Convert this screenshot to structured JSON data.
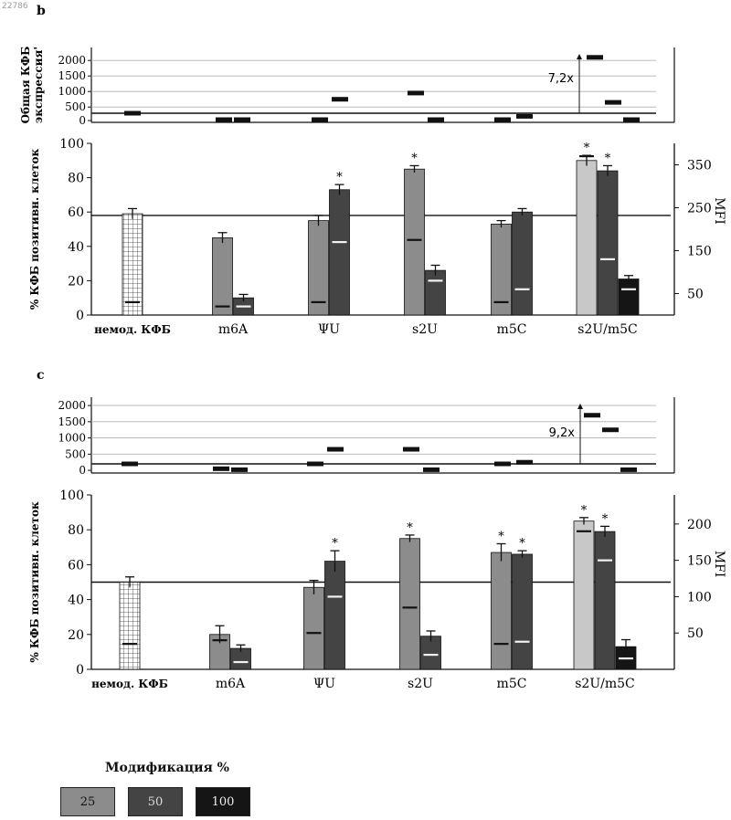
{
  "corner_id": "22786",
  "legend": {
    "title": "Модификация %",
    "entries": [
      {
        "label": "25",
        "color": "#8c8c8c",
        "text_color": "#111111"
      },
      {
        "label": "50",
        "color": "#444444",
        "text_color": "#dddddd"
      },
      {
        "label": "100",
        "color": "#151515",
        "text_color": "#eeeeee"
      }
    ]
  },
  "chart_data": [
    {
      "panel": "b",
      "type": "bar",
      "categories": [
        "немод. КФБ",
        "m6A",
        "ΨU",
        "s2U",
        "m5C",
        "s2U/m5C"
      ],
      "ylabel": "% КФБ позитивн. клеток",
      "ylim": [
        0,
        100
      ],
      "yticks": [
        0,
        20,
        40,
        60,
        80,
        100
      ],
      "y2label": "MFI",
      "y2ticks": [
        50,
        150,
        250,
        350
      ],
      "y2lim": [
        0,
        400
      ],
      "reference_line": 58,
      "series": [
        {
          "name": "25",
          "values": [
            null,
            45,
            55,
            85,
            53,
            90
          ],
          "errors": [
            null,
            3,
            3,
            2,
            2,
            3
          ],
          "mfi": [
            null,
            20,
            30,
            175,
            30,
            370
          ],
          "significant": [
            false,
            false,
            false,
            true,
            false,
            true
          ]
        },
        {
          "name": "50",
          "values": [
            null,
            10,
            73,
            26,
            60,
            84
          ],
          "errors": [
            null,
            2,
            3,
            3,
            2,
            3
          ],
          "mfi": [
            null,
            20,
            170,
            80,
            60,
            130
          ],
          "significant": [
            false,
            false,
            true,
            false,
            false,
            true
          ]
        },
        {
          "name": "100",
          "values": [
            null,
            null,
            null,
            null,
            null,
            21
          ],
          "errors": [
            null,
            null,
            null,
            null,
            null,
            2
          ],
          "mfi": [
            null,
            null,
            null,
            null,
            null,
            60
          ],
          "significant": [
            false,
            false,
            false,
            false,
            false,
            false
          ]
        }
      ],
      "unmodified": {
        "value": 59,
        "error": 3,
        "mfi": 30
      },
      "expression": {
        "ylabel": "Общая КФБ экспрессия'",
        "yticks": [
          0,
          500,
          1000,
          1500,
          2000
        ],
        "baseline": 300,
        "marks": [
          [
            300
          ],
          [
            50,
            20
          ],
          [
            70,
            750
          ],
          [
            950,
            80
          ],
          [
            60,
            200
          ],
          [
            2100,
            650,
            80
          ]
        ],
        "fold_label": "7,2x"
      }
    },
    {
      "panel": "c",
      "type": "bar",
      "categories": [
        "немод. КФБ",
        "m6A",
        "ΨU",
        "s2U",
        "m5C",
        "s2U/m5C"
      ],
      "ylabel": "% КФБ позитивн. клеток",
      "ylim": [
        0,
        100
      ],
      "yticks": [
        0,
        20,
        40,
        60,
        80,
        100
      ],
      "y2label": "MFI",
      "y2ticks": [
        50,
        100,
        150,
        200
      ],
      "y2lim": [
        0,
        240
      ],
      "reference_line": 50,
      "series": [
        {
          "name": "25",
          "values": [
            null,
            20,
            47,
            75,
            67,
            85
          ],
          "errors": [
            null,
            5,
            4,
            2,
            5,
            2
          ],
          "mfi": [
            null,
            40,
            50,
            85,
            35,
            190
          ],
          "significant": [
            false,
            false,
            false,
            true,
            true,
            true
          ]
        },
        {
          "name": "50",
          "values": [
            null,
            12,
            62,
            19,
            66,
            79
          ],
          "errors": [
            null,
            2,
            6,
            3,
            2,
            3
          ],
          "mfi": [
            null,
            10,
            100,
            20,
            38,
            150
          ],
          "significant": [
            false,
            false,
            true,
            false,
            true,
            true
          ]
        },
        {
          "name": "100",
          "values": [
            null,
            null,
            null,
            null,
            null,
            13
          ],
          "errors": [
            null,
            null,
            null,
            null,
            null,
            4
          ],
          "mfi": [
            null,
            null,
            null,
            null,
            null,
            15
          ],
          "significant": [
            false,
            false,
            false,
            false,
            false,
            false
          ]
        }
      ],
      "unmodified": {
        "value": 50,
        "error": 3,
        "mfi": 35
      },
      "expression": {
        "yticks": [
          0,
          500,
          1000,
          1500,
          2000
        ],
        "baseline": 200,
        "marks": [
          [
            200
          ],
          [
            50,
            20
          ],
          [
            200,
            650
          ],
          [
            650,
            20
          ],
          [
            200,
            250
          ],
          [
            1700,
            1250,
            20
          ]
        ],
        "fold_label": "9,2x"
      }
    }
  ]
}
